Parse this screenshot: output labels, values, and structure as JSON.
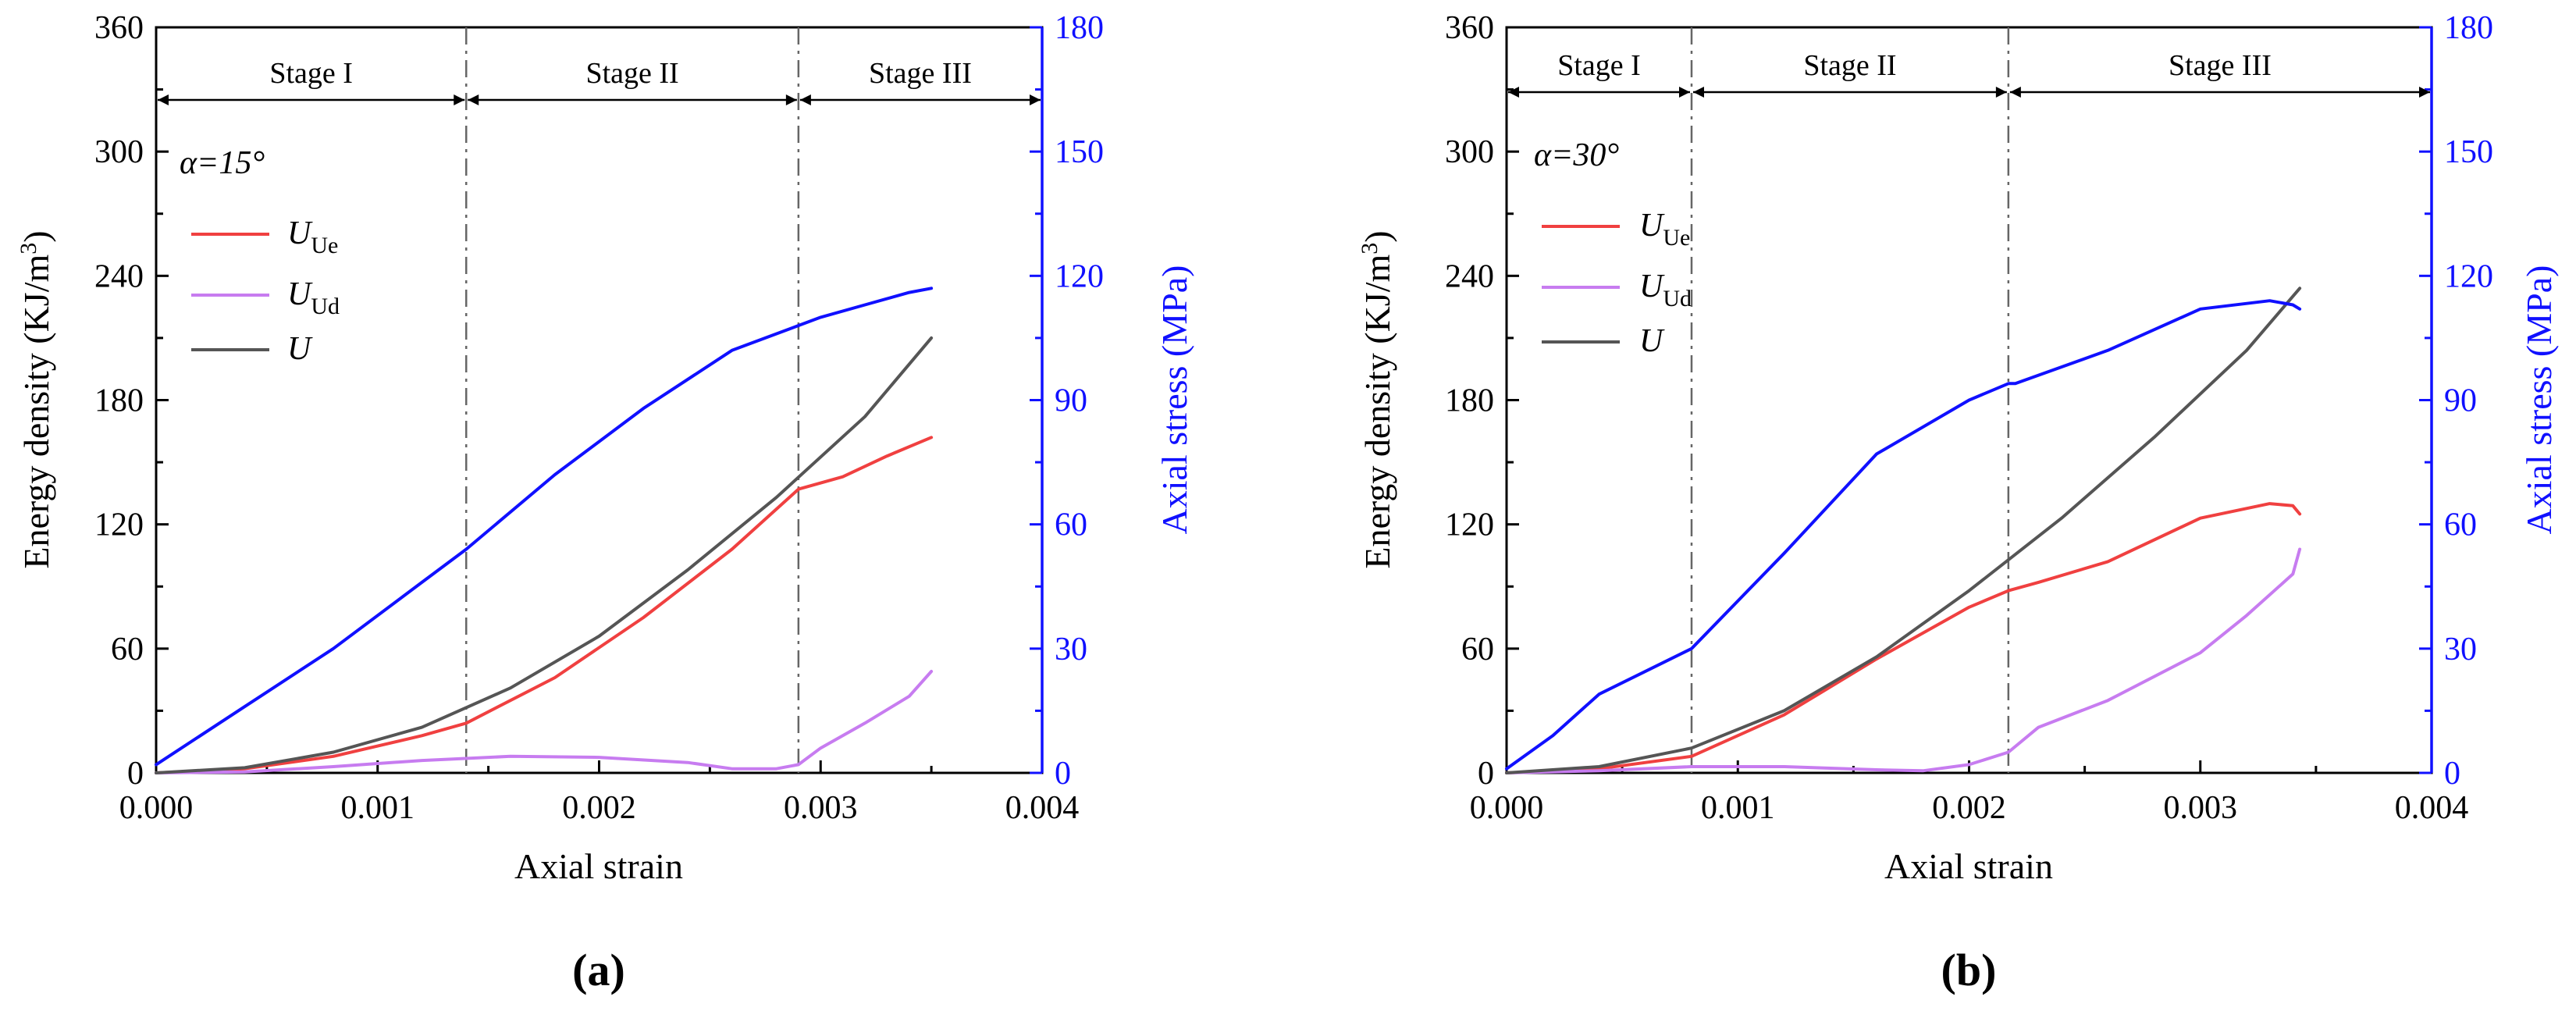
{
  "colors": {
    "Ue": "#f04040",
    "Ud": "#c77cf0",
    "U": "#555555",
    "stress": "#1010ff",
    "axis": "#000000",
    "stage_line": "#666666"
  },
  "chart_data": [
    {
      "panel_label": "(a)",
      "type": "line",
      "xlabel": "Axial strain",
      "ylabel_left": "Energy density (KJ/m3)",
      "ylabel_right": "Axial stress (MPa)",
      "xlim": [
        0,
        0.004
      ],
      "ylim_left": [
        0,
        360
      ],
      "ylim_right": [
        0,
        180
      ],
      "x_ticks": [
        "0.000",
        "0.001",
        "0.002",
        "0.003",
        "0.004"
      ],
      "y_ticks_left": [
        "0",
        "60",
        "120",
        "180",
        "240",
        "300",
        "360"
      ],
      "y_ticks_right": [
        "0",
        "30",
        "60",
        "90",
        "120",
        "150",
        "180"
      ],
      "angle_label": "α=15°",
      "stage_boundaries": [
        0.0014,
        0.0029
      ],
      "stages": [
        "Stage I",
        "Stage II",
        "Stage III"
      ],
      "legend": [
        "Ue",
        "Ud",
        "U"
      ],
      "series": [
        {
          "name": "Ue",
          "axis": "left",
          "x": [
            0,
            0.0004,
            0.0008,
            0.0012,
            0.0014,
            0.0018,
            0.0022,
            0.0026,
            0.0029,
            0.0031,
            0.0033,
            0.0035
          ],
          "values": [
            0,
            2,
            8,
            18,
            24,
            46,
            75,
            108,
            137,
            143,
            153,
            162
          ]
        },
        {
          "name": "Ud",
          "axis": "left",
          "x": [
            0,
            0.0004,
            0.0008,
            0.0012,
            0.0016,
            0.002,
            0.0024,
            0.0026,
            0.0028,
            0.0029,
            0.003,
            0.0032,
            0.0034,
            0.0035
          ],
          "values": [
            0,
            0.5,
            3,
            6,
            8,
            7.5,
            5,
            2,
            2,
            4,
            12,
            24,
            37,
            49
          ]
        },
        {
          "name": "U",
          "axis": "left",
          "x": [
            0,
            0.0004,
            0.0008,
            0.0012,
            0.0016,
            0.002,
            0.0024,
            0.0028,
            0.0032,
            0.0035
          ],
          "values": [
            0,
            2.5,
            10,
            22,
            41,
            66,
            98,
            133,
            172,
            210
          ]
        },
        {
          "name": "Axial stress",
          "axis": "right",
          "x": [
            0,
            0.0004,
            0.0008,
            0.0012,
            0.0014,
            0.0018,
            0.0022,
            0.0026,
            0.0029,
            0.003,
            0.0032,
            0.0034,
            0.0035
          ],
          "values": [
            2,
            16,
            30,
            46,
            54,
            72,
            88,
            102,
            108,
            110,
            113,
            116,
            117
          ]
        }
      ]
    },
    {
      "panel_label": "(b)",
      "type": "line",
      "xlabel": "Axial strain",
      "ylabel_left": "Energy density (KJ/m3)",
      "ylabel_right": "Axial stress (MPa)",
      "xlim": [
        0,
        0.004
      ],
      "ylim_left": [
        0,
        360
      ],
      "ylim_right": [
        0,
        180
      ],
      "x_ticks": [
        "0.000",
        "0.001",
        "0.002",
        "0.003",
        "0.004"
      ],
      "y_ticks_left": [
        "0",
        "60",
        "120",
        "180",
        "240",
        "300",
        "360"
      ],
      "y_ticks_right": [
        "0",
        "30",
        "60",
        "90",
        "120",
        "150",
        "180"
      ],
      "angle_label": "α=30°",
      "stage_boundaries": [
        0.0008,
        0.00217
      ],
      "stages": [
        "Stage I",
        "Stage II",
        "Stage III"
      ],
      "legend": [
        "Ue",
        "Ud",
        "U"
      ],
      "series": [
        {
          "name": "Ue",
          "axis": "left",
          "x": [
            0,
            0.0004,
            0.0008,
            0.0012,
            0.0016,
            0.002,
            0.00217,
            0.0023,
            0.0026,
            0.003,
            0.0033,
            0.0034,
            0.00343
          ],
          "values": [
            0,
            2,
            8,
            28,
            55,
            80,
            88,
            92,
            102,
            123,
            130,
            129,
            125
          ]
        },
        {
          "name": "Ud",
          "axis": "left",
          "x": [
            0,
            0.0004,
            0.0008,
            0.0012,
            0.0016,
            0.0018,
            0.002,
            0.00217,
            0.0023,
            0.0026,
            0.003,
            0.0032,
            0.0034,
            0.00343
          ],
          "values": [
            0,
            1,
            3,
            3,
            1.5,
            1,
            4,
            10,
            22,
            35,
            58,
            76,
            96,
            108
          ]
        },
        {
          "name": "U",
          "axis": "left",
          "x": [
            0,
            0.0004,
            0.0008,
            0.0012,
            0.0016,
            0.002,
            0.0024,
            0.0028,
            0.0032,
            0.00343
          ],
          "values": [
            0,
            3,
            12,
            30,
            56,
            88,
            123,
            162,
            204,
            234
          ]
        },
        {
          "name": "Axial stress",
          "axis": "right",
          "x": [
            0,
            0.0002,
            0.0004,
            0.0008,
            0.0012,
            0.0016,
            0.002,
            0.00217,
            0.0022,
            0.0026,
            0.003,
            0.0033,
            0.0034,
            0.00343
          ],
          "values": [
            1,
            9,
            19,
            30,
            53,
            77,
            90,
            94,
            94,
            102,
            112,
            114,
            113,
            112
          ]
        }
      ]
    }
  ]
}
